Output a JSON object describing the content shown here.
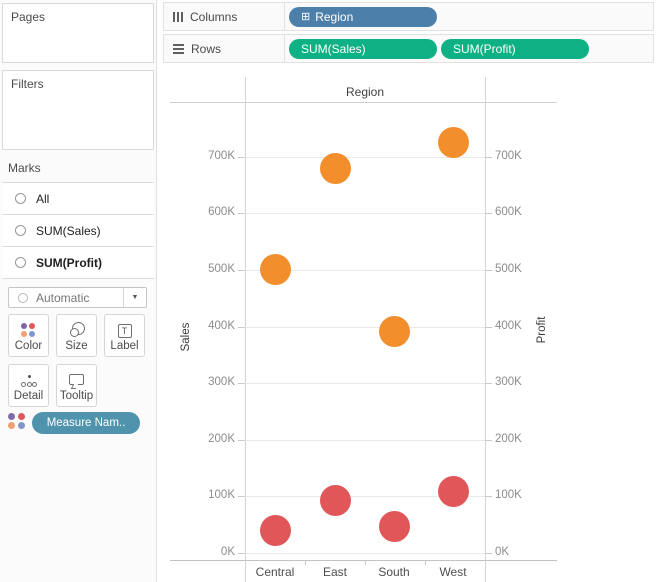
{
  "sidebar": {
    "pages": {
      "title": "Pages"
    },
    "filters": {
      "title": "Filters"
    },
    "marks": {
      "title": "Marks",
      "items": [
        {
          "label": "All"
        },
        {
          "label": "SUM(Sales)"
        },
        {
          "label": "SUM(Profit)"
        }
      ],
      "mark_type": "Automatic",
      "buttons": {
        "color": "Color",
        "size": "Size",
        "label": "Label",
        "detail": "Detail",
        "tooltip": "Tooltip"
      },
      "measure_pill": "Measure Nam.."
    }
  },
  "shelves": {
    "columns_label": "Columns",
    "rows_label": "Rows",
    "columns_pills": [
      {
        "label": "Region"
      }
    ],
    "rows_pills": [
      {
        "label": "SUM(Sales)"
      },
      {
        "label": "SUM(Profit)"
      }
    ]
  },
  "icons": {
    "plus_box": "⊞",
    "caret": "▼",
    "label_glyph": "T"
  },
  "colors": {
    "dimension_pill_blue": "#4c80ab",
    "measure_pill_green": "#0db183",
    "measure_names_pill_teal": "#4f93ad",
    "sales_mark_orange": "#f28e2b",
    "profit_mark_red": "#e15759"
  },
  "chart_data": {
    "type": "scatter",
    "title": "Region",
    "categories": [
      "Central",
      "East",
      "South",
      "West"
    ],
    "series": [
      {
        "name": "SUM(Sales)",
        "axis_label": "Sales",
        "axis_side": "left",
        "color": "#f28e2b",
        "values": [
          501000,
          679000,
          392000,
          725000
        ]
      },
      {
        "name": "SUM(Profit)",
        "axis_label": "Profit",
        "axis_side": "right",
        "color": "#e15759",
        "values": [
          40000,
          92000,
          47000,
          108000
        ]
      }
    ],
    "y_ticks": [
      "0K",
      "100K",
      "200K",
      "300K",
      "400K",
      "500K",
      "600K",
      "700K"
    ],
    "y_tick_step": 100000,
    "ylim": [
      0,
      840000
    ],
    "grid": true,
    "dual_axis": true,
    "legend_position": "none"
  }
}
